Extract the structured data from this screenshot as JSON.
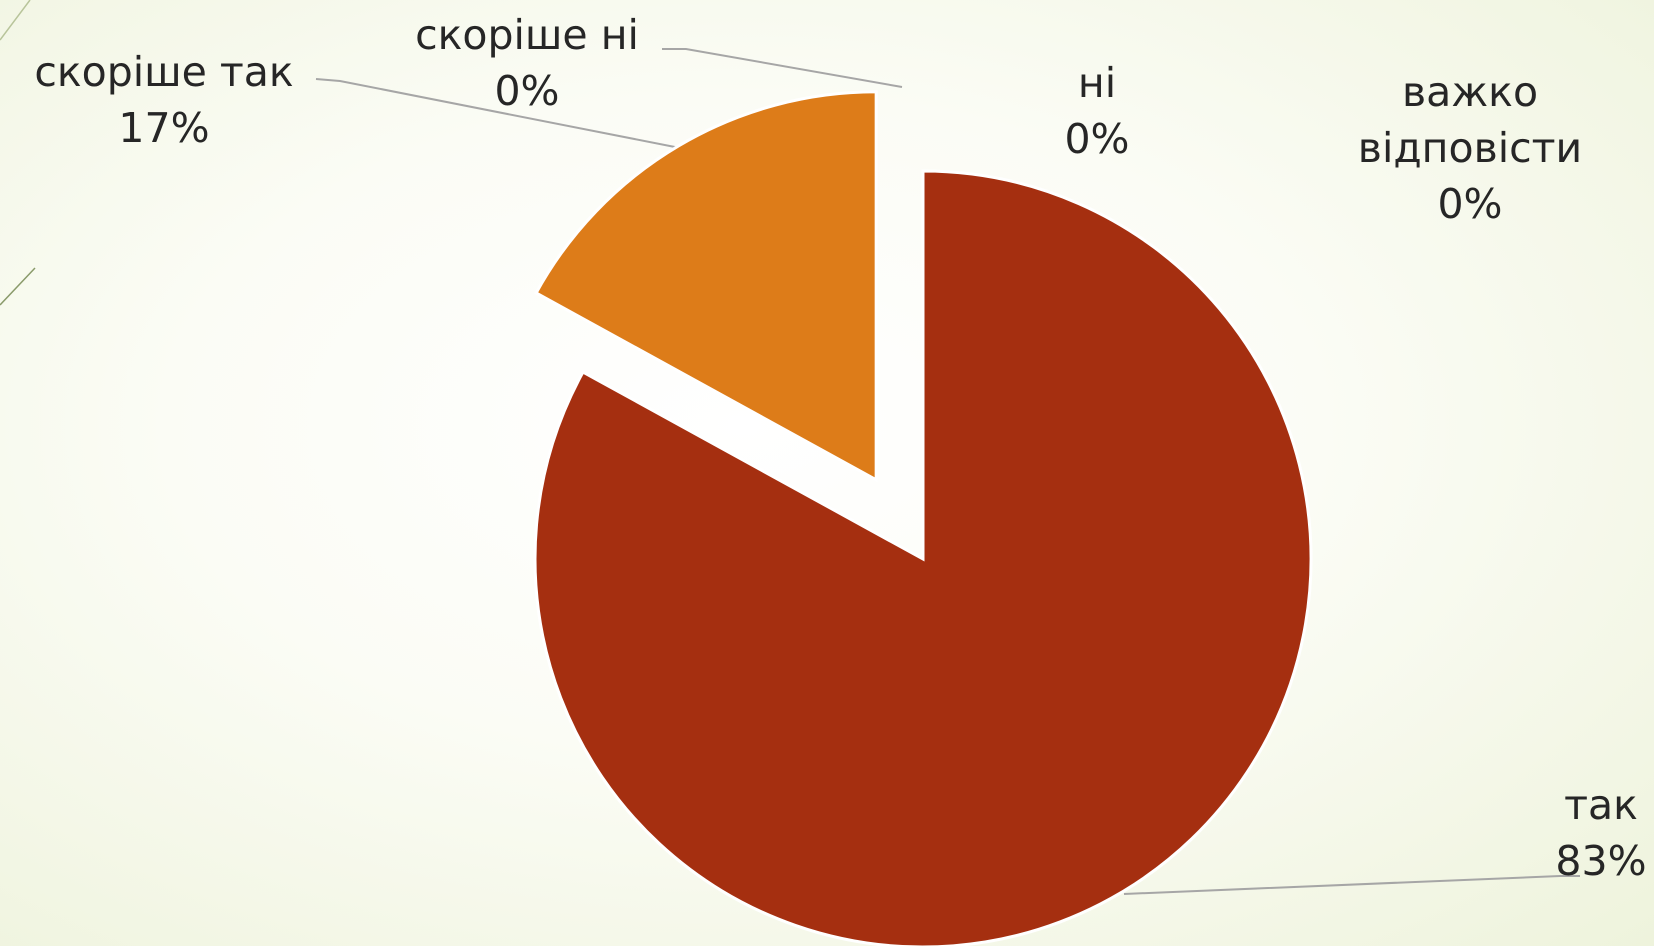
{
  "chart_data": {
    "type": "pie",
    "categories": [
      "так",
      "скоріше так",
      "скоріше ні",
      "ні",
      "важко відповісти"
    ],
    "values": [
      83,
      17,
      0,
      0,
      0
    ],
    "value_labels": [
      "83%",
      "17%",
      "0%",
      "0%",
      "0%"
    ],
    "colors": [
      "#a52f10",
      "#dd7c19",
      "#8c8c5a",
      "#6b7d3a",
      "#b8860b"
    ],
    "exploded": "скоріше так"
  }
}
